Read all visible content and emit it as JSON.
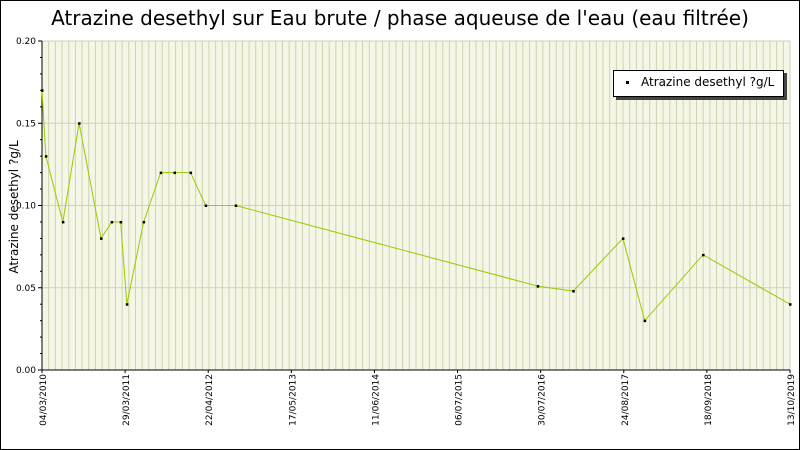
{
  "chart_data": {
    "type": "line",
    "title": "Atrazine desethyl sur Eau brute / phase aqueuse de l'eau (eau filtrée)",
    "xlabel": "",
    "ylabel": "Atrazine desethyl ?g/L",
    "ylim": [
      0,
      0.2
    ],
    "y_ticks": [
      "0.00",
      "0.05",
      "0.10",
      "0.15",
      "0.20"
    ],
    "xlim": [
      "2010-03-04",
      "2019-10-13"
    ],
    "x_ticks": [
      {
        "date": "2010-03-04",
        "label": "04/03/2010"
      },
      {
        "date": "2011-03-29",
        "label": "29/03/2011"
      },
      {
        "date": "2012-04-22",
        "label": "22/04/2012"
      },
      {
        "date": "2013-05-17",
        "label": "17/05/2013"
      },
      {
        "date": "2014-06-11",
        "label": "11/06/2014"
      },
      {
        "date": "2015-07-06",
        "label": "06/07/2015"
      },
      {
        "date": "2016-07-30",
        "label": "30/07/2016"
      },
      {
        "date": "2017-08-24",
        "label": "24/08/2017"
      },
      {
        "date": "2018-09-18",
        "label": "18/09/2018"
      },
      {
        "date": "2019-10-13",
        "label": "13/10/2019"
      }
    ],
    "grid": true,
    "legend_position": "top-right",
    "series": [
      {
        "name": "Atrazine desethyl ?g/L",
        "color": "#99cc00",
        "marker_color": "#000000",
        "points": [
          {
            "x": "2010-03-04",
            "y": 0.17
          },
          {
            "x": "2010-03-22",
            "y": 0.13
          },
          {
            "x": "2010-06-10",
            "y": 0.09
          },
          {
            "x": "2010-08-25",
            "y": 0.15
          },
          {
            "x": "2010-12-06",
            "y": 0.08
          },
          {
            "x": "2011-01-25",
            "y": 0.09
          },
          {
            "x": "2011-03-08",
            "y": 0.09
          },
          {
            "x": "2011-04-06",
            "y": 0.04
          },
          {
            "x": "2011-06-24",
            "y": 0.09
          },
          {
            "x": "2011-09-12",
            "y": 0.12
          },
          {
            "x": "2011-11-16",
            "y": 0.12
          },
          {
            "x": "2012-01-30",
            "y": 0.12
          },
          {
            "x": "2012-04-10",
            "y": 0.1
          },
          {
            "x": "2012-08-29",
            "y": 0.1
          },
          {
            "x": "2016-07-16",
            "y": 0.051
          },
          {
            "x": "2016-12-30",
            "y": 0.048
          },
          {
            "x": "2017-08-20",
            "y": 0.08
          },
          {
            "x": "2017-11-30",
            "y": 0.03
          },
          {
            "x": "2018-08-31",
            "y": 0.07
          },
          {
            "x": "2019-10-13",
            "y": 0.04
          }
        ]
      }
    ]
  }
}
